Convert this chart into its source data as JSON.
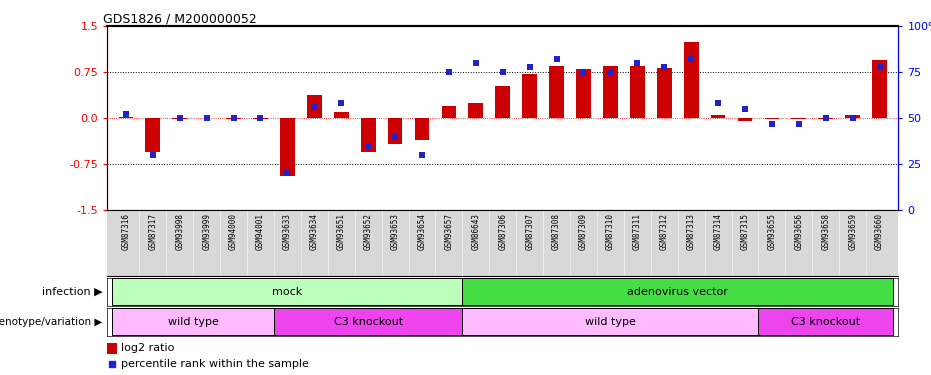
{
  "title": "GDS1826 / M200000052",
  "samples": [
    "GSM87316",
    "GSM87317",
    "GSM93998",
    "GSM93999",
    "GSM94000",
    "GSM94001",
    "GSM93633",
    "GSM93634",
    "GSM93651",
    "GSM93652",
    "GSM93653",
    "GSM93654",
    "GSM93657",
    "GSM86643",
    "GSM87306",
    "GSM87307",
    "GSM87308",
    "GSM87309",
    "GSM87310",
    "GSM87311",
    "GSM87312",
    "GSM87313",
    "GSM87314",
    "GSM87315",
    "GSM93655",
    "GSM93656",
    "GSM93658",
    "GSM93659",
    "GSM93660"
  ],
  "log2_ratio": [
    0.02,
    -0.55,
    -0.02,
    0.0,
    -0.02,
    -0.02,
    -0.95,
    0.38,
    0.1,
    -0.55,
    -0.42,
    -0.35,
    0.2,
    0.25,
    0.52,
    0.72,
    0.85,
    0.8,
    0.85,
    0.85,
    0.82,
    1.25,
    0.05,
    -0.05,
    -0.02,
    -0.02,
    -0.02,
    0.05,
    0.95
  ],
  "percentile_rank": [
    52,
    30,
    50,
    50,
    50,
    50,
    20,
    56,
    58,
    35,
    40,
    30,
    75,
    80,
    75,
    78,
    82,
    75,
    75,
    80,
    78,
    82,
    58,
    55,
    47,
    47,
    50,
    50,
    78
  ],
  "ylim": [
    -1.5,
    1.5
  ],
  "yticks_left": [
    -1.5,
    -0.75,
    0.0,
    0.75,
    1.5
  ],
  "yticks_right": [
    0,
    25,
    50,
    75,
    100
  ],
  "bar_color": "#cc0000",
  "dot_color": "#2222cc",
  "infection_groups": [
    {
      "label": "mock",
      "start": 0,
      "end": 13,
      "color": "#bbffbb"
    },
    {
      "label": "adenovirus vector",
      "start": 13,
      "end": 29,
      "color": "#44dd44"
    }
  ],
  "genotype_groups": [
    {
      "label": "wild type",
      "start": 0,
      "end": 6,
      "color": "#ffbbff"
    },
    {
      "label": "C3 knockout",
      "start": 6,
      "end": 13,
      "color": "#ee44ee"
    },
    {
      "label": "wild type",
      "start": 13,
      "end": 24,
      "color": "#ffbbff"
    },
    {
      "label": "C3 knockout",
      "start": 24,
      "end": 29,
      "color": "#ee44ee"
    }
  ],
  "legend_bar_color": "#cc0000",
  "legend_dot_color": "#2222cc",
  "legend_bar_label": "log2 ratio",
  "legend_dot_label": "percentile rank within the sample",
  "infection_label": "infection",
  "genotype_label": "genotype/variation"
}
